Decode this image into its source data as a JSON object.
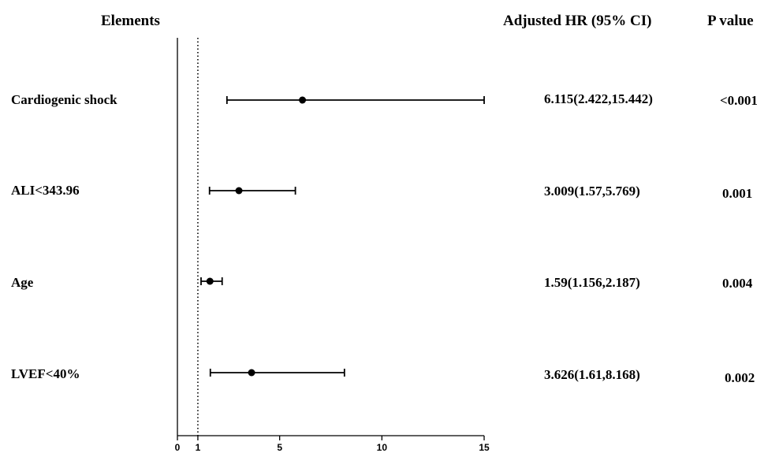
{
  "headers": {
    "elements": "Elements",
    "hr": "Adjusted HR (95% CI)",
    "p": "P value"
  },
  "chart_data": {
    "type": "forest",
    "title": "",
    "xlabel": "",
    "ylabel": "",
    "xlim": [
      0,
      15
    ],
    "x_ticks": [
      0,
      1,
      5,
      10,
      15
    ],
    "reference_line": 1,
    "rows": [
      {
        "label": "Cardiogenic shock",
        "hr": 6.115,
        "lower": 2.422,
        "upper": 15.442,
        "hr_text": "6.115(2.422,15.442)",
        "p": "<0.001"
      },
      {
        "label": "ALI<343.96",
        "hr": 3.009,
        "lower": 1.57,
        "upper": 5.769,
        "hr_text": "3.009(1.57,5.769)",
        "p": "0.001"
      },
      {
        "label": "Age",
        "hr": 1.59,
        "lower": 1.156,
        "upper": 2.187,
        "hr_text": "1.59(1.156,2.187)",
        "p": "0.004"
      },
      {
        "label": "LVEF<40%",
        "hr": 3.626,
        "lower": 1.61,
        "upper": 8.168,
        "hr_text": "3.626(1.61,8.168)",
        "p": "0.002"
      }
    ]
  }
}
